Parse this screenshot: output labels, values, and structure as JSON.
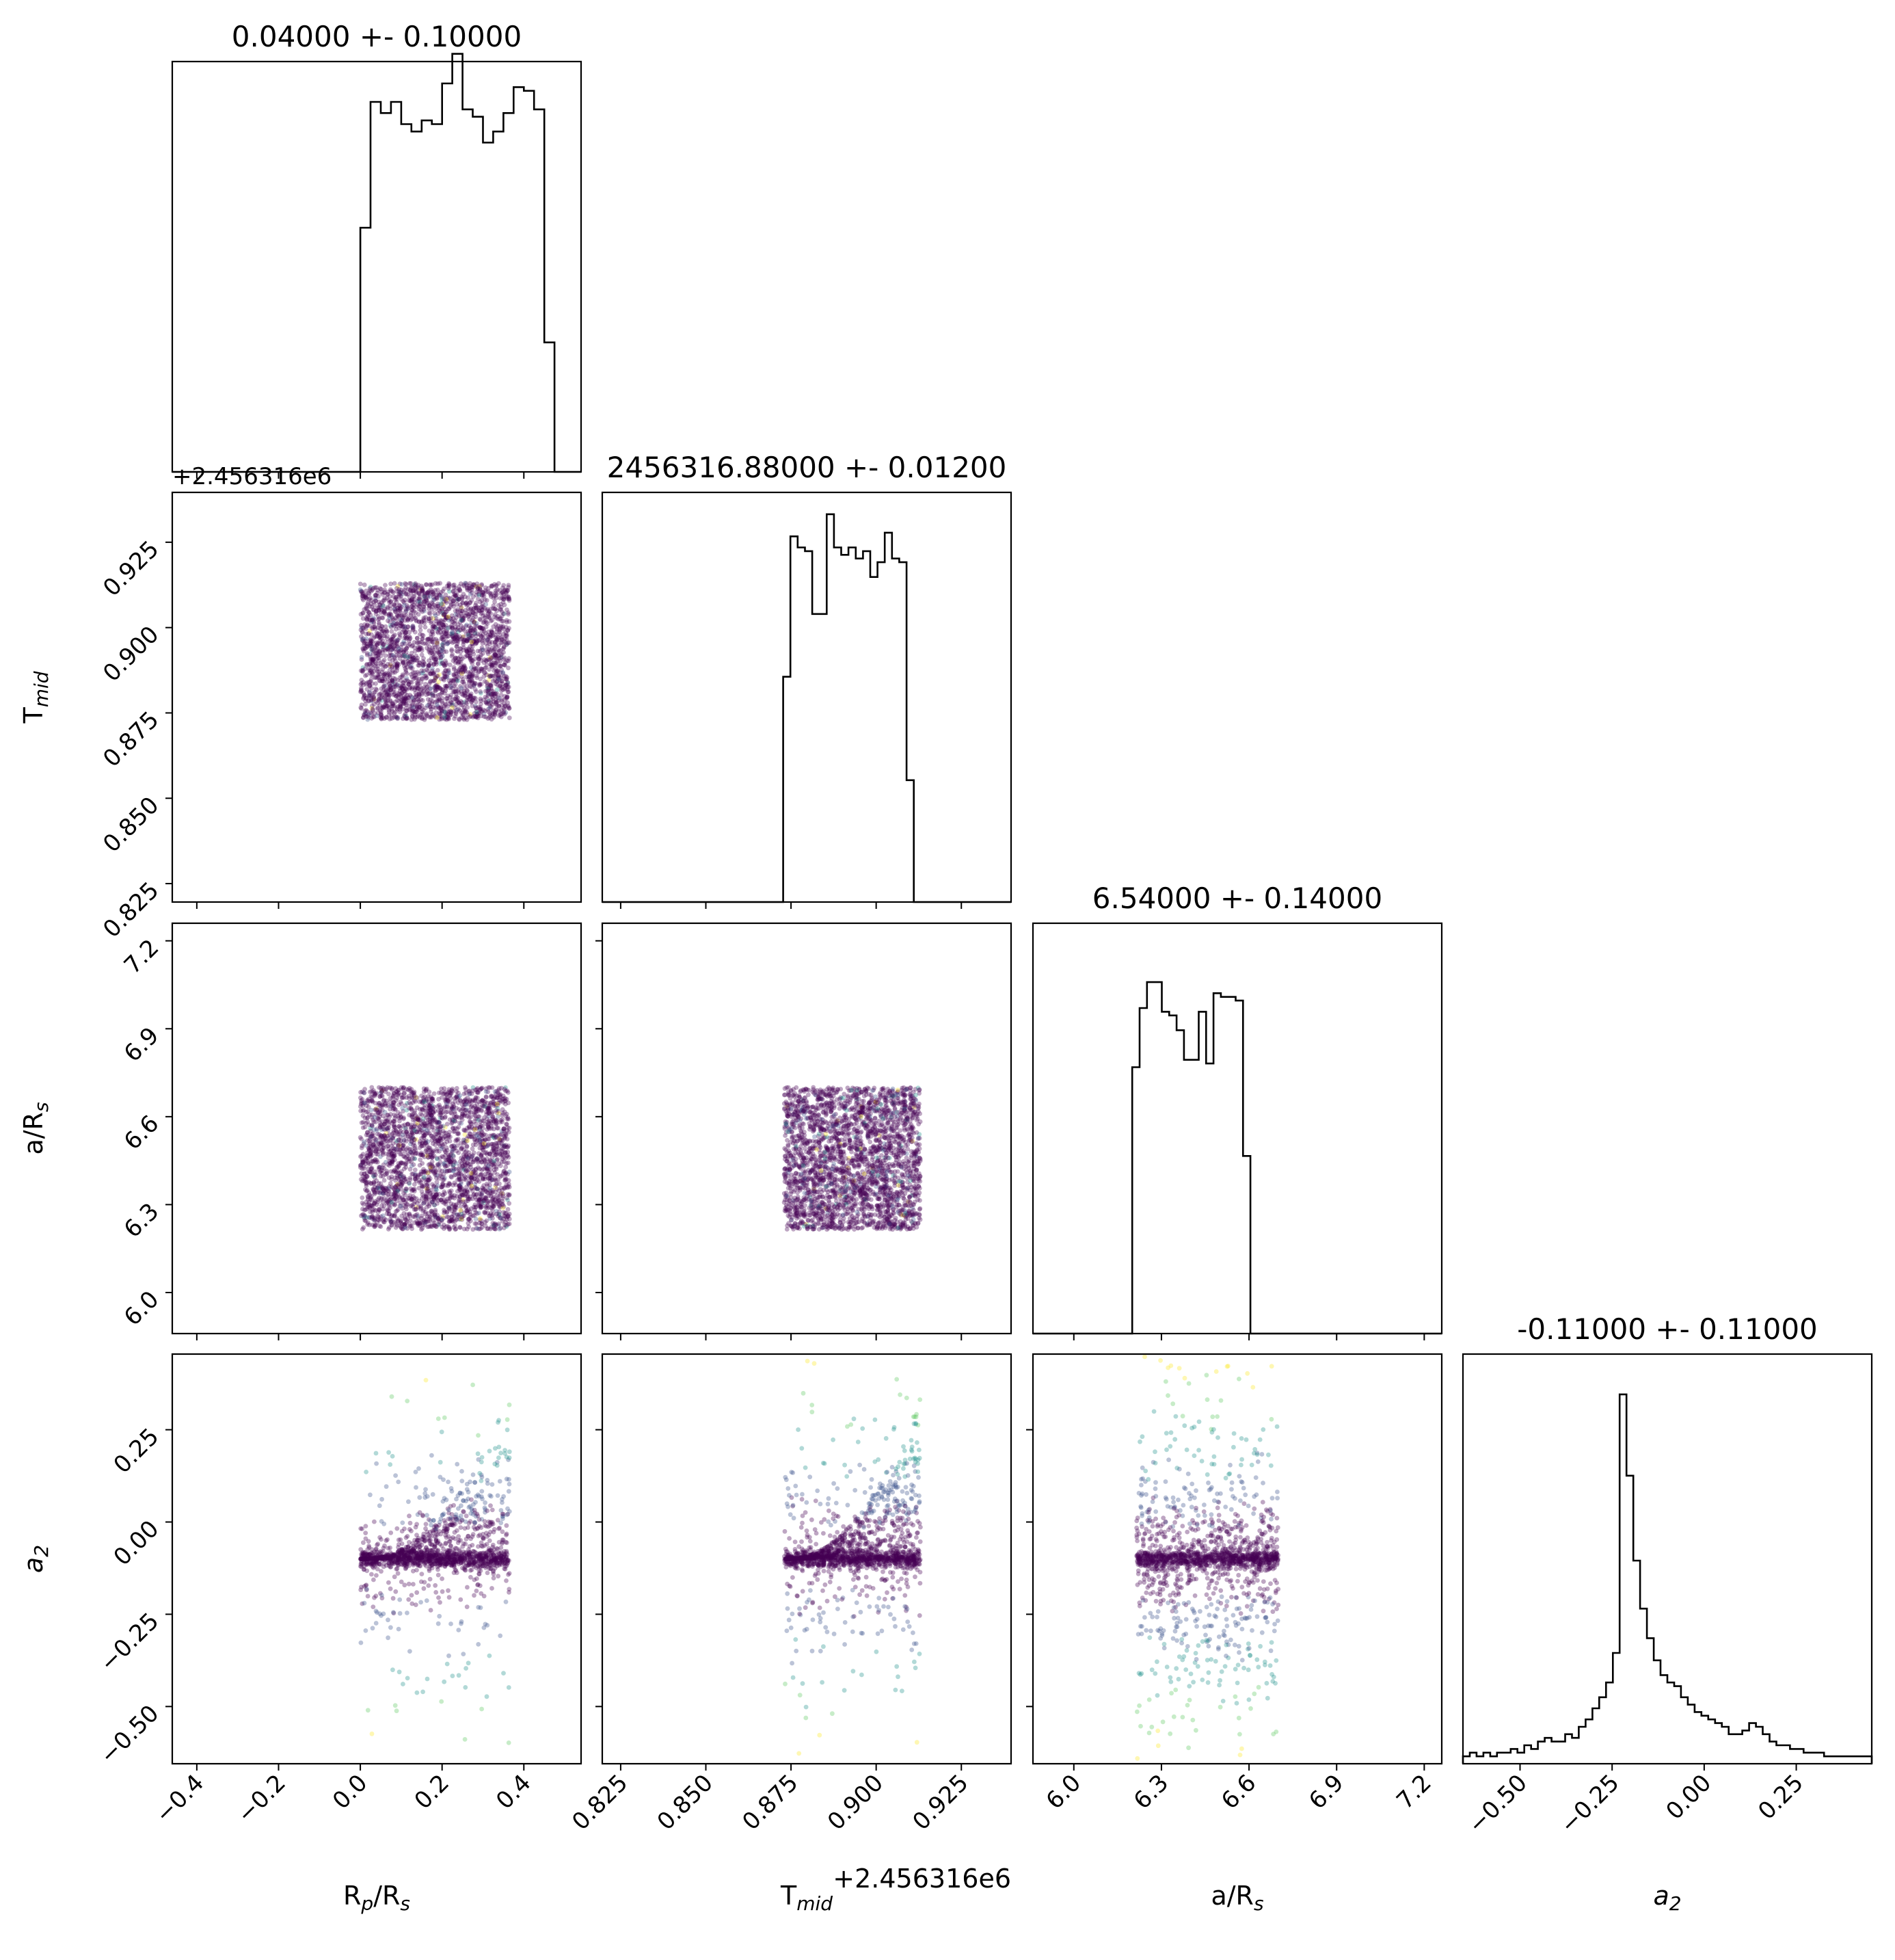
{
  "chart_data": {
    "type": "corner",
    "parameters": [
      {
        "id": "rp",
        "label_main": "R",
        "label_sub1": "p",
        "label_mid": "/R",
        "label_sub2": "s",
        "range": [
          -0.46,
          0.54
        ],
        "ticks": [
          -0.4,
          -0.2,
          0.0,
          0.2,
          0.4
        ],
        "tick_labels": [
          "−0.4",
          "−0.2",
          "0.0",
          "0.2",
          "0.4"
        ],
        "title": "0.04000 +- 0.10000",
        "offset_text": "",
        "hist": {
          "lo": 0.0,
          "width": 0.025,
          "heights": [
            0.66,
            1.0,
            0.97,
            1.0,
            0.94,
            0.92,
            0.95,
            0.94,
            1.05,
            1.13,
            0.98,
            0.96,
            0.89,
            0.92,
            0.97,
            1.04,
            1.03,
            0.98,
            0.35,
            0.0
          ]
        }
      },
      {
        "id": "tmid",
        "label_main": "T",
        "label_sub1": "mid",
        "label_mid": "",
        "label_sub2": "",
        "range": [
          0.8196,
          0.9396
        ],
        "ticks": [
          0.825,
          0.85,
          0.875,
          0.9,
          0.925
        ],
        "tick_labels": [
          "0.825",
          "0.850",
          "0.875",
          "0.900",
          "0.925"
        ],
        "title": "2456316.88000 +- 0.01200",
        "offset_text": "+2.456316e6",
        "hist": {
          "lo": 0.8727,
          "width": 0.00213,
          "heights": [
            0.61,
            0.99,
            0.96,
            0.95,
            0.78,
            0.78,
            1.05,
            0.96,
            0.94,
            0.96,
            0.93,
            0.95,
            0.88,
            0.92,
            1.0,
            0.93,
            0.92,
            0.33,
            0.0
          ]
        }
      },
      {
        "id": "ars",
        "label_main": "a/R",
        "label_sub1": "",
        "label_mid": "",
        "label_sub2": "s",
        "range": [
          5.86,
          7.26
        ],
        "ticks": [
          6.0,
          6.3,
          6.6,
          6.9,
          7.2
        ],
        "tick_labels": [
          "6.0",
          "6.3",
          "6.6",
          "6.9",
          "7.2"
        ],
        "title": "6.54000 +- 0.14000",
        "offset_text": "",
        "hist": {
          "lo": 6.2,
          "width": 0.0253,
          "heights": [
            0.72,
            0.88,
            0.95,
            0.95,
            0.87,
            0.86,
            0.82,
            0.74,
            0.74,
            0.87,
            0.73,
            0.92,
            0.91,
            0.91,
            0.9,
            0.48,
            0.0
          ]
        }
      },
      {
        "id": "a2",
        "label_main": "a",
        "label_sub1": "2",
        "label_mid": "",
        "label_sub2": "",
        "range": [
          -0.655,
          0.455
        ],
        "ticks": [
          -0.5,
          -0.25,
          0.0,
          0.25
        ],
        "tick_labels": [
          "−0.50",
          "−0.25",
          "0.00",
          "0.25"
        ],
        "title": "-0.11000 +- 0.11000",
        "offset_text": "",
        "hist": {
          "lo": -0.655,
          "width": 0.0185,
          "heights": [
            0.02,
            0.03,
            0.02,
            0.03,
            0.02,
            0.03,
            0.03,
            0.04,
            0.03,
            0.05,
            0.04,
            0.06,
            0.07,
            0.06,
            0.06,
            0.08,
            0.07,
            0.1,
            0.12,
            0.15,
            0.18,
            0.22,
            0.3,
            1.0,
            0.78,
            0.55,
            0.42,
            0.34,
            0.28,
            0.24,
            0.22,
            0.21,
            0.18,
            0.16,
            0.14,
            0.13,
            0.12,
            0.11,
            0.1,
            0.08,
            0.08,
            0.09,
            0.11,
            0.1,
            0.08,
            0.06,
            0.05,
            0.05,
            0.04,
            0.04,
            0.03,
            0.03,
            0.03,
            0.02,
            0.02,
            0.02,
            0.02,
            0.02,
            0.02,
            0.02
          ]
        }
      }
    ],
    "scatter": {
      "colormap": [
        "#440154",
        "#3b528b",
        "#21918c",
        "#5ec962",
        "#fde725"
      ],
      "point_alpha": 0.35,
      "square_n": 2600,
      "a2_n": 1600,
      "a2_core": -0.1,
      "a2_width": 0.012
    }
  }
}
